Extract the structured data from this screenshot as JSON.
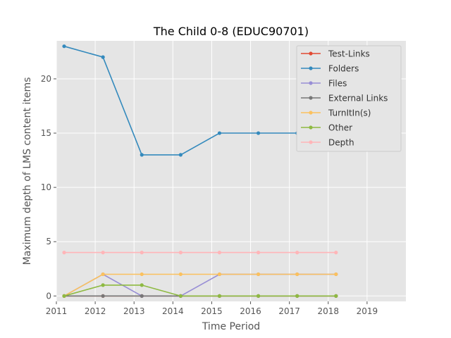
{
  "chart_data": {
    "type": "line",
    "title": "The Child 0-8 (EDUC90701)",
    "xlabel": "Time Period",
    "ylabel": "Maximum depth of LMS content items",
    "x": [
      2011.2,
      2012.2,
      2013.2,
      2014.2,
      2015.2,
      2016.2,
      2017.2,
      2018.2
    ],
    "xlim": [
      2011,
      2020
    ],
    "ylim": [
      -0.5,
      23.5
    ],
    "xticks": [
      2011,
      2012,
      2013,
      2014,
      2015,
      2016,
      2017,
      2018,
      2019
    ],
    "xtick_labels": [
      "2011",
      "2012",
      "2013",
      "2014",
      "2015",
      "2016",
      "2017",
      "2018",
      "2019"
    ],
    "yticks": [
      0,
      5,
      10,
      15,
      20
    ],
    "ytick_labels": [
      "0",
      "5",
      "10",
      "15",
      "20"
    ],
    "grid": true,
    "legend_position": "top-right",
    "series": [
      {
        "name": "Test-Links",
        "color": "#e24a33",
        "values": [
          0,
          0,
          0,
          0,
          0,
          0,
          0,
          0
        ]
      },
      {
        "name": "Folders",
        "color": "#348abd",
        "values": [
          23,
          22,
          13,
          13,
          15,
          15,
          15,
          15
        ]
      },
      {
        "name": "Files",
        "color": "#988ed5",
        "values": [
          0,
          2,
          0,
          0,
          2,
          2,
          2,
          2
        ]
      },
      {
        "name": "External Links",
        "color": "#777777",
        "values": [
          0,
          0,
          0,
          0,
          0,
          0,
          0,
          0
        ]
      },
      {
        "name": "TurnItIn(s)",
        "color": "#fbc15e",
        "values": [
          0,
          2,
          2,
          2,
          2,
          2,
          2,
          2
        ]
      },
      {
        "name": "Other",
        "color": "#8eba42",
        "values": [
          0,
          1,
          1,
          0,
          0,
          0,
          0,
          0
        ]
      },
      {
        "name": "Depth",
        "color": "#ffb5b8",
        "values": [
          4,
          4,
          4,
          4,
          4,
          4,
          4,
          4
        ]
      }
    ]
  }
}
